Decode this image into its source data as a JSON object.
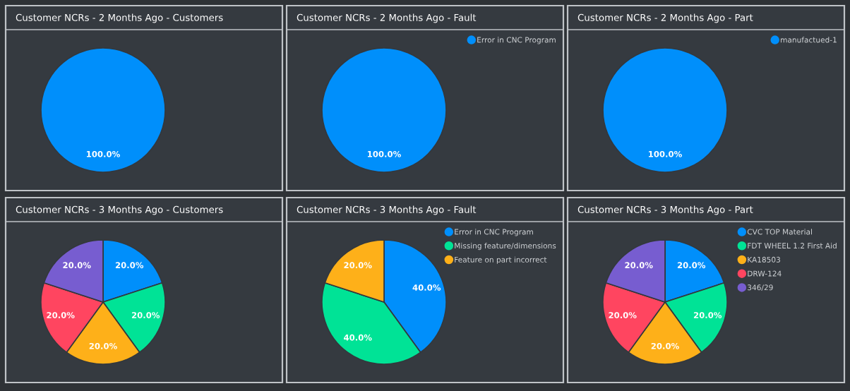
{
  "chart_data": [
    {
      "type": "pie",
      "title": "Customer NCRs - 2 Months Ago - Customers",
      "categories": [
        null
      ],
      "values": [
        100
      ],
      "colors": [
        "#008ffb"
      ],
      "value_labels": [
        "100.0%"
      ]
    },
    {
      "type": "pie",
      "title": "Customer NCRs - 2 Months Ago - Fault",
      "categories": [
        "Error in CNC Program"
      ],
      "values": [
        100
      ],
      "colors": [
        "#008ffb"
      ],
      "value_labels": [
        "100.0%"
      ],
      "legend": "top right"
    },
    {
      "type": "pie",
      "title": "Customer NCRs - 2 Months Ago - Part",
      "categories": [
        "manufactued-1"
      ],
      "values": [
        100
      ],
      "colors": [
        "#008ffb"
      ],
      "value_labels": [
        "100.0%"
      ],
      "legend": "top right"
    },
    {
      "type": "pie",
      "title": "Customer NCRs - 3 Months Ago - Customers",
      "categories": [
        null,
        null,
        null,
        null,
        null
      ],
      "values": [
        20,
        20,
        20,
        20,
        20
      ],
      "colors": [
        "#008ffb",
        "#00e396",
        "#feb019",
        "#ff4560",
        "#775dd0"
      ],
      "value_labels": [
        "20.0%",
        "20.0%",
        "20.0%",
        "20.0%",
        "20.0%"
      ]
    },
    {
      "type": "pie",
      "title": "Customer NCRs - 3 Months Ago - Fault",
      "categories": [
        "Error in CNC Program",
        "Missing feature/dimensions",
        "Feature on part incorrect"
      ],
      "values": [
        40,
        40,
        20
      ],
      "colors": [
        "#008ffb",
        "#00e396",
        "#feb019"
      ],
      "value_labels": [
        "40.0%",
        "40.0%",
        "20.0%"
      ],
      "legend": "top right"
    },
    {
      "type": "pie",
      "title": "Customer NCRs - 3 Months Ago - Part",
      "categories": [
        "CVC TOP Material",
        "FDT WHEEL 1.2 First Aid",
        "KA18503",
        "DRW-124",
        "346/29"
      ],
      "values": [
        20,
        20,
        20,
        20,
        20
      ],
      "colors": [
        "#008ffb",
        "#00e396",
        "#feb019",
        "#ff4560",
        "#775dd0"
      ],
      "value_labels": [
        "20.0%",
        "20.0%",
        "20.0%",
        "20.0%",
        "20.0%"
      ],
      "legend": "top right"
    }
  ]
}
